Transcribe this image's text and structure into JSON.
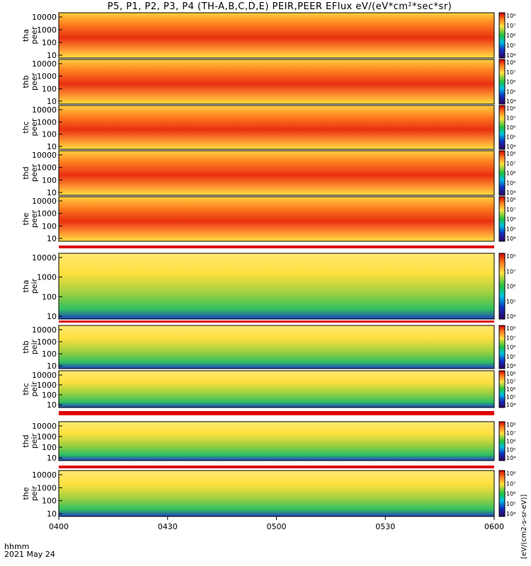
{
  "title": "P5, P1, P2, P3, P4 (TH-A,B,C,D,E) PEIR,PEER EFlux eV/(eV*cm²*sec*sr)",
  "colorbar_unit_label": "[eV/(cm2-s-sr-eV)]",
  "colorbar_ticks": [
    "10⁴",
    "10⁵",
    "10⁶",
    "10⁷",
    "10⁸"
  ],
  "x_axis": {
    "tick_labels": [
      "0400",
      "0430",
      "0500",
      "0530",
      "0600"
    ],
    "label_line1": "hhmm",
    "label_line2": "2021 May 24"
  },
  "colors": {
    "spectrogram_high": "#e01010",
    "spectrogram_mid": "#ffe040",
    "spectrogram_low": "#20c040",
    "spectrogram_floor": "#1030c0",
    "status_bar": "#e00000"
  },
  "chart_data": [
    {
      "type": "heatmap",
      "probe": "tha",
      "species": "peer",
      "ylabel": "tha peer",
      "yticks": [
        "10000",
        "1000",
        "100",
        "10"
      ],
      "y_scale": "log",
      "x_range": [
        "0400",
        "0600"
      ]
    },
    {
      "type": "heatmap",
      "probe": "thb",
      "species": "peer",
      "ylabel": "thb peer",
      "yticks": [
        "10000",
        "1000",
        "100",
        "10"
      ],
      "y_scale": "log",
      "x_range": [
        "0400",
        "0600"
      ]
    },
    {
      "type": "heatmap",
      "probe": "thc",
      "species": "peer",
      "ylabel": "thc peer",
      "yticks": [
        "10000",
        "1000",
        "100",
        "10"
      ],
      "y_scale": "log",
      "x_range": [
        "0400",
        "0600"
      ]
    },
    {
      "type": "heatmap",
      "probe": "thd",
      "species": "peer",
      "ylabel": "thd peer",
      "yticks": [
        "10000",
        "1000",
        "100",
        "10"
      ],
      "y_scale": "log",
      "x_range": [
        "0400",
        "0600"
      ]
    },
    {
      "type": "heatmap",
      "probe": "the",
      "species": "peer",
      "ylabel": "the peer",
      "yticks": [
        "10000",
        "1000",
        "100",
        "10"
      ],
      "y_scale": "log",
      "x_range": [
        "0400",
        "0600"
      ]
    },
    {
      "type": "heatmap",
      "probe": "tha",
      "species": "peir",
      "ylabel": "tha peir",
      "yticks": [
        "10000",
        "1000",
        "100",
        "10"
      ],
      "y_scale": "log",
      "x_range": [
        "0400",
        "0600"
      ]
    },
    {
      "type": "heatmap",
      "probe": "thb",
      "species": "peir",
      "ylabel": "thb peir",
      "yticks": [
        "10000",
        "1000",
        "100",
        "10"
      ],
      "y_scale": "log",
      "x_range": [
        "0400",
        "0600"
      ]
    },
    {
      "type": "heatmap",
      "probe": "thc",
      "species": "peir",
      "ylabel": "thc peir",
      "yticks": [
        "10000",
        "1000",
        "100",
        "10"
      ],
      "y_scale": "log",
      "x_range": [
        "0400",
        "0600"
      ]
    },
    {
      "type": "heatmap",
      "probe": "thd",
      "species": "peir",
      "ylabel": "thd peir",
      "yticks": [
        "10000",
        "1000",
        "100",
        "10"
      ],
      "y_scale": "log",
      "x_range": [
        "0400",
        "0600"
      ]
    },
    {
      "type": "heatmap",
      "probe": "the",
      "species": "peir",
      "ylabel": "the peir",
      "yticks": [
        "10000",
        "1000",
        "100",
        "10"
      ],
      "y_scale": "log",
      "x_range": [
        "0400",
        "0600"
      ]
    }
  ]
}
